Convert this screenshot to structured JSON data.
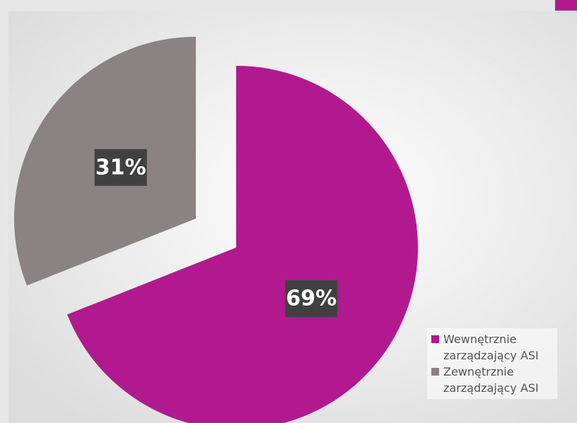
{
  "chart_data": {
    "type": "pie",
    "categories": [
      "Wewnętrznie zarządzający ASI",
      "Zewnętrznie zarządzający ASI"
    ],
    "values": [
      69,
      31
    ],
    "value_labels": [
      "69%",
      "31%"
    ],
    "colors": [
      "#b3198e",
      "#8b8283"
    ],
    "legend": "bottom-right"
  }
}
